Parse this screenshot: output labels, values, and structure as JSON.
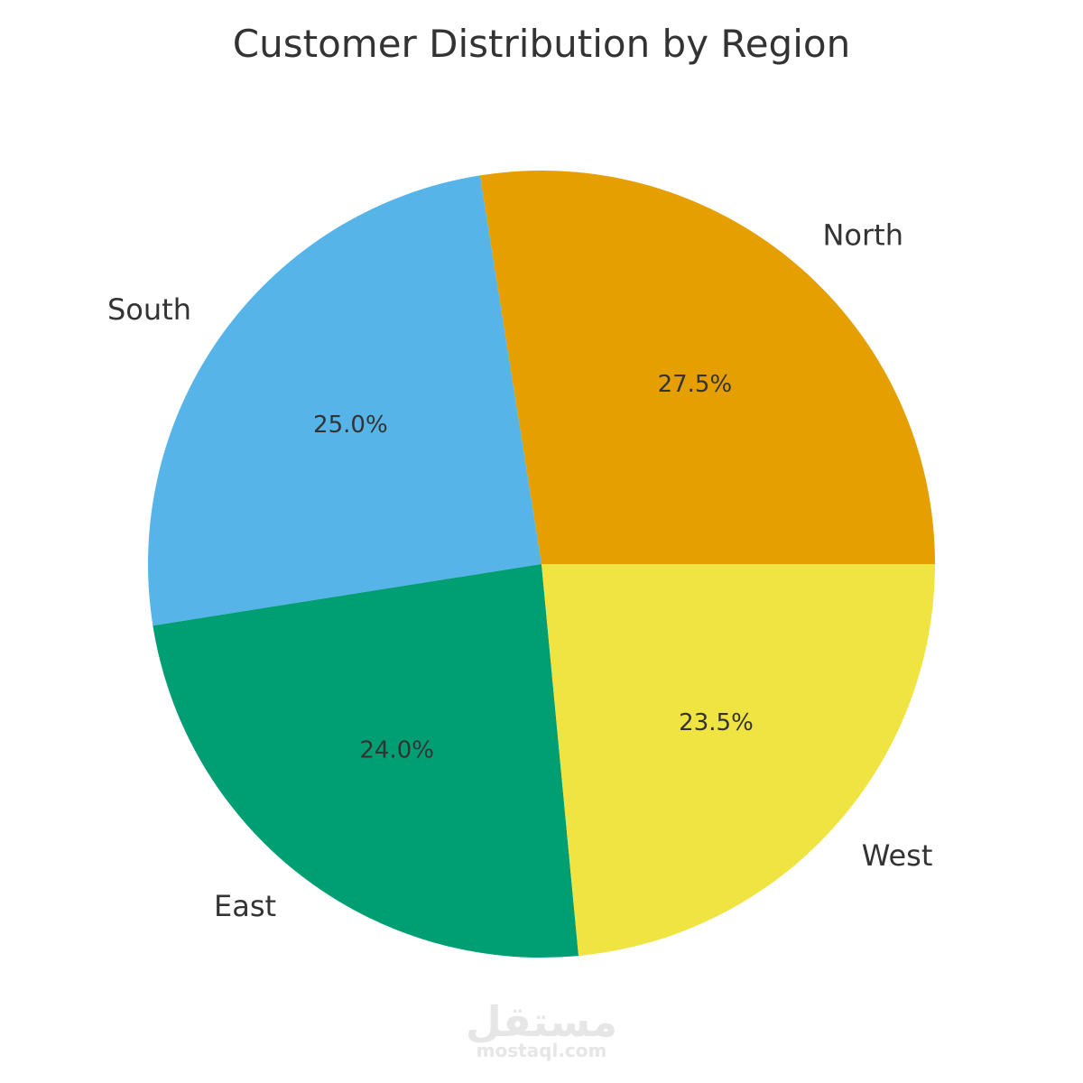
{
  "chart_data": {
    "type": "pie",
    "title": "Customer Distribution by Region",
    "slices": [
      {
        "label": "North",
        "value": 27.5,
        "percent_label": "27.5%",
        "color": "#E69F00"
      },
      {
        "label": "South",
        "value": 25.0,
        "percent_label": "25.0%",
        "color": "#56B4E9"
      },
      {
        "label": "East",
        "value": 24.0,
        "percent_label": "24.0%",
        "color": "#009E73"
      },
      {
        "label": "West",
        "value": 23.5,
        "percent_label": "23.5%",
        "color": "#F0E442"
      }
    ],
    "start_angle_deg": 0,
    "direction": "counterclockwise",
    "legend": "none"
  },
  "watermark": {
    "arabic": "مستقل",
    "latin": "mostaql.com"
  }
}
